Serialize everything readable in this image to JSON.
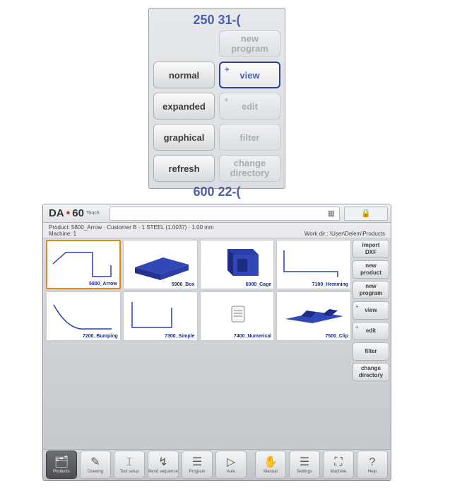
{
  "zoom": {
    "top_number": "250 31-(",
    "bottom_number": "600 22-(",
    "buttons": [
      {
        "label": "normal",
        "style": "grey",
        "plus": false
      },
      {
        "label": "new\nprogram",
        "style": "dim",
        "plus": false,
        "twoLine": true
      },
      {
        "label": "view",
        "style": "focus",
        "plus": true
      },
      {
        "label": "expanded",
        "style": "grey",
        "plus": false
      },
      {
        "label": "edit",
        "style": "dim",
        "plus": true
      },
      {
        "label": "graphical",
        "style": "grey",
        "plus": false
      },
      {
        "label": "filter",
        "style": "dim",
        "plus": false
      },
      {
        "label": "refresh",
        "style": "grey",
        "plus": false
      },
      {
        "label": "change\ndirectory",
        "style": "dim",
        "plus": false,
        "twoLine": true
      }
    ]
  },
  "app": {
    "logo": {
      "da": "DA",
      "dot": "•",
      "num": "60",
      "sub": "Touch"
    },
    "header_calc_icon": "▦",
    "header_lock_icon": "🔒",
    "info_line1": "Product: 5800_Arrow · Customer B · 1 STEEL (1.0037) · 1.00 mm",
    "info_machine": "Machine: 1",
    "info_workdir": "Work dir.: \\User\\Delem\\Products",
    "tiles": [
      {
        "label": "5800_Arrow",
        "sel": true,
        "kind": "line",
        "color": "#2b3fb0"
      },
      {
        "label": "5900_Box",
        "sel": false,
        "kind": "box3d",
        "color": "#2b3fb0"
      },
      {
        "label": "6000_Cage",
        "sel": false,
        "kind": "cage3d",
        "color": "#2b3fb0"
      },
      {
        "label": "7100_Hemming",
        "sel": false,
        "kind": "line2",
        "color": "#2b3fb0"
      },
      {
        "label": "7200_Bumping",
        "sel": false,
        "kind": "curve",
        "color": "#2b3fb0"
      },
      {
        "label": "7300_Simple",
        "sel": false,
        "kind": "step",
        "color": "#2b3fb0"
      },
      {
        "label": "7400_Numerical",
        "sel": false,
        "kind": "doc",
        "color": "#888"
      },
      {
        "label": "7500_Clip",
        "sel": false,
        "kind": "clip3d",
        "color": "#2b3fb0"
      }
    ],
    "side": [
      {
        "label": "import\nDXF",
        "plus": false
      },
      {
        "label": "new\nproduct",
        "plus": false
      },
      {
        "label": "new\nprogram",
        "plus": false
      },
      {
        "label": "view",
        "plus": true
      },
      {
        "label": "edit",
        "plus": true
      },
      {
        "label": "filter",
        "plus": false
      },
      {
        "label": "change\ndirectory",
        "plus": false
      }
    ],
    "footer": [
      {
        "label": "Products",
        "icon": "🗂",
        "active": true
      },
      {
        "label": "Drawing",
        "icon": "✎",
        "active": false
      },
      {
        "label": "Tool setup",
        "icon": "⌶",
        "active": false
      },
      {
        "label": "Bend sequence",
        "icon": "↯",
        "active": false
      },
      {
        "label": "Program",
        "icon": "☰",
        "active": false
      },
      {
        "label": "Auto",
        "icon": "▷",
        "active": false
      },
      {
        "label": "Manual",
        "icon": "✋",
        "active": false
      },
      {
        "label": "Settings",
        "icon": "☰",
        "active": false
      },
      {
        "label": "Machine",
        "icon": "⛶",
        "active": false
      },
      {
        "label": "Help",
        "icon": "?",
        "active": false
      }
    ]
  }
}
